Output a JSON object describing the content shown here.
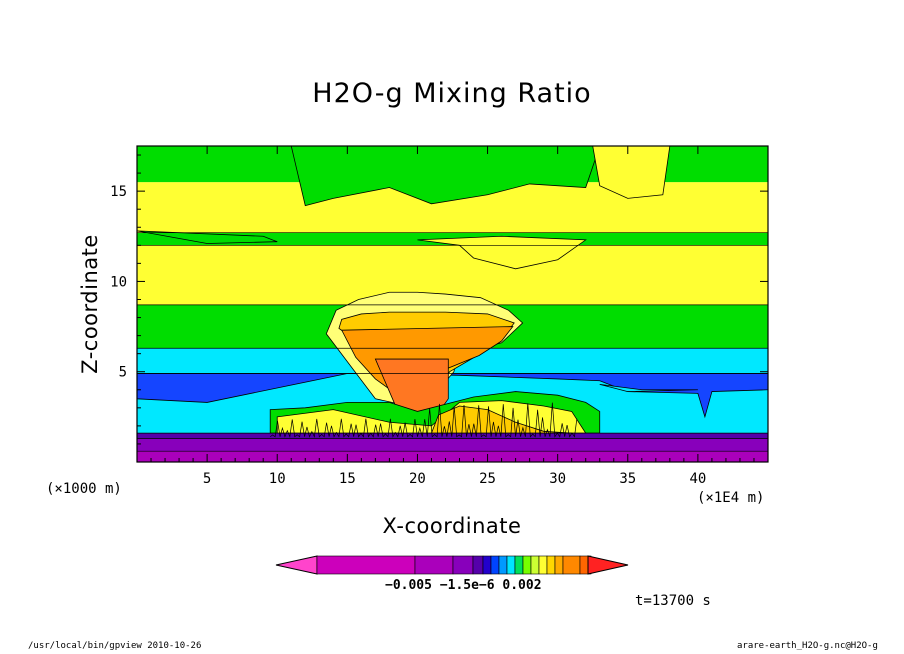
{
  "chart_data": {
    "type": "heatmap",
    "title": "H2O-g Mixing Ratio",
    "xlabel": "X-coordinate",
    "ylabel": "Z-coordinate",
    "x_unit_label": "(×1000 m)",
    "x_scale_label": "(×1E4 m)",
    "xlim": [
      0,
      45
    ],
    "ylim": [
      0,
      17.5
    ],
    "x_ticks": [
      5,
      10,
      15,
      20,
      25,
      30,
      35,
      40
    ],
    "y_ticks": [
      5,
      10,
      15
    ],
    "colorbar": {
      "tick_labels": "−0.005 −1.5e−6  0.002",
      "colors": [
        "#ff44cc",
        "#cc00bb",
        "#aa00bb",
        "#8800bb",
        "#5500aa",
        "#2200cc",
        "#0044ff",
        "#0099ff",
        "#00e5ff",
        "#00e05a",
        "#77ff00",
        "#ccff33",
        "#ffff33",
        "#ffd700",
        "#ffaa00",
        "#ff8800",
        "#ff6600",
        "#ff2222"
      ]
    },
    "time_label": "t=13700 s",
    "grid": false
  },
  "footer": {
    "left": "/usr/local/bin/gpview  2010-10-26",
    "right": "arare-earth_H2O-g.nc@H2O-g"
  },
  "colors": {
    "green": "#00dd00",
    "yellow": "#ffff33",
    "cyan": "#00e8ff",
    "blue": "#1545ff",
    "lightyellow": "#ffff77",
    "gold": "#ffcc00",
    "orange": "#ff9900",
    "darkorange": "#ff7722",
    "purple": "#8800bb",
    "darkpurple": "#5500aa",
    "magenta": "#aa00bb"
  }
}
